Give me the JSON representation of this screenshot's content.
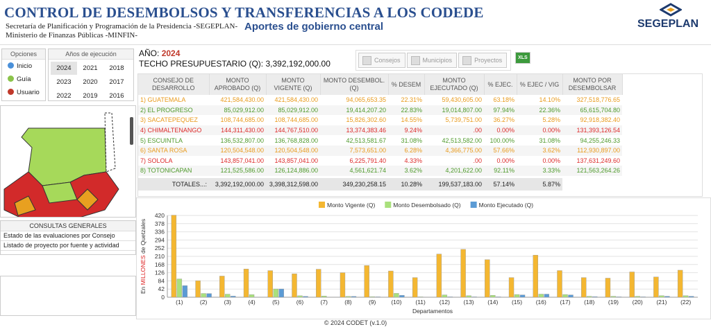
{
  "header": {
    "title": "CONTROL DE DESEMBOLSOS Y TRANSFERENCIAS A LOS CODEDE",
    "subtitle_lines": [
      "Secretaría de Planificación y Programación de la Presidencia -SEGEPLAN-",
      "Ministerio de Finanzas Públicas -MINFIN-"
    ],
    "tagline": "Aportes de gobierno central",
    "logo": "SEGEPLAN"
  },
  "nav": {
    "options_title": "Opciones",
    "years_title": "Años de ejecución",
    "options": [
      "Inicio",
      "Guía",
      "Usuario"
    ],
    "years": [
      "2024",
      "2021",
      "2018",
      "2023",
      "2020",
      "2017",
      "2022",
      "2019",
      "2016"
    ]
  },
  "budget": {
    "year_label": "AÑO:",
    "year": "2024",
    "ceiling_label": "TECHO PRESUPUESTARIO (Q):",
    "ceiling": "3,392,192,000.00"
  },
  "toolbar": {
    "buttons": [
      "Consejos",
      "Municipios",
      "Proyectos"
    ],
    "export": "XLS"
  },
  "consultas": {
    "title": "CONSULTAS GENERALES",
    "items": [
      "Estado de las evaluaciones por Consejo",
      "Listado de proyecto por fuente y actividad"
    ]
  },
  "table": {
    "columns": [
      "CONSEJO DE DESARROLLO",
      "MONTO APROBADO (Q)",
      "MONTO VIGENTE (Q)",
      "MONTO DESEMBOL. (Q)",
      "% DESEM",
      "MONTO EJECUTADO (Q)",
      "% EJEC.",
      "% EJEC / VIG",
      "MONTO POR DESEMBOLSAR"
    ],
    "rows": [
      {
        "color": "#e89a1c",
        "cells": [
          "1) GUATEMALA",
          "421,584,430.00",
          "421,584,430.00",
          "94,065,653.35",
          "22.31%",
          "59,430,605.00",
          "63.18%",
          "14.10%",
          "327,518,776.65"
        ]
      },
      {
        "color": "#4f9a2c",
        "cells": [
          "2) EL PROGRESO",
          "85,029,912.00",
          "85,029,912.00",
          "19,414,207.20",
          "22.83%",
          "19,014,807.00",
          "97.94%",
          "22.36%",
          "65,615,704.80"
        ]
      },
      {
        "color": "#e89a1c",
        "cells": [
          "3) SACATEPEQUEZ",
          "108,744,685.00",
          "108,744,685.00",
          "15,826,302.60",
          "14.55%",
          "5,739,751.00",
          "36.27%",
          "5.28%",
          "92,918,382.40"
        ]
      },
      {
        "color": "#dd2a2a",
        "cells": [
          "4) CHIMALTENANGO",
          "144,311,430.00",
          "144,767,510.00",
          "13,374,383.46",
          "9.24%",
          ".00",
          "0.00%",
          "0.00%",
          "131,393,126.54"
        ]
      },
      {
        "color": "#4f9a2c",
        "cells": [
          "5) ESCUINTLA",
          "136,532,807.00",
          "136,768,828.00",
          "42,513,581.67",
          "31.08%",
          "42,513,582.00",
          "100.00%",
          "31.08%",
          "94,255,246.33"
        ]
      },
      {
        "color": "#e89a1c",
        "cells": [
          "6) SANTA ROSA",
          "120,504,548.00",
          "120,504,548.00",
          "7,573,651.00",
          "6.28%",
          "4,366,775.00",
          "57.66%",
          "3.62%",
          "112,930,897.00"
        ]
      },
      {
        "color": "#dd2a2a",
        "cells": [
          "7) SOLOLA",
          "143,857,041.00",
          "143,857,041.00",
          "6,225,791.40",
          "4.33%",
          ".00",
          "0.00%",
          "0.00%",
          "137,631,249.60"
        ]
      },
      {
        "color": "#4f9a2c",
        "cells": [
          "8) TOTONICAPAN",
          "121,525,586.00",
          "126,124,886.00",
          "4,561,621.74",
          "3.62%",
          "4,201,622.00",
          "92.11%",
          "3.33%",
          "121,563,264.26"
        ]
      }
    ],
    "totals": [
      "TOTALES...:",
      "3,392,192,000.00",
      "3,398,312,598.00",
      "349,230,258.15",
      "10.28%",
      "199,537,183.00",
      "57.14%",
      "5.87%"
    ]
  },
  "chart_data": {
    "type": "bar",
    "y_label_parts": [
      "En ",
      "MILLONES",
      " de Quetzales"
    ],
    "x_label": "Departamentos",
    "categories": [
      "(1)",
      "(2)",
      "(3)",
      "(4)",
      "(5)",
      "(6)",
      "(7)",
      "(8)",
      "(9)",
      "(10)",
      "(11)",
      "(12)",
      "(13)",
      "(14)",
      "(15)",
      "(16)",
      "(17)",
      "(18)",
      "(19)",
      "(20)",
      "(21)",
      "(22)"
    ],
    "series": [
      {
        "name": "Monto Vigente (Q)",
        "color": "#f4b731",
        "values": [
          421.6,
          85.0,
          108.7,
          144.8,
          136.8,
          120.5,
          143.9,
          126.1,
          163,
          135,
          101,
          222,
          246,
          193,
          101,
          216,
          137,
          101,
          98,
          130,
          104,
          139
        ]
      },
      {
        "name": "Monto Desembolsado (Q)",
        "color": "#a9e07c",
        "values": [
          94.1,
          19.4,
          15.8,
          13.4,
          42.5,
          7.6,
          6.2,
          4.6,
          3,
          20,
          2,
          12,
          8,
          10,
          14,
          16,
          14,
          5,
          5,
          5,
          8,
          8
        ]
      },
      {
        "name": "Monto Ejecutado (Q)",
        "color": "#5b9bd5",
        "values": [
          59.4,
          19.0,
          5.7,
          0,
          42.5,
          4.4,
          0,
          4.2,
          2,
          10,
          0,
          2,
          2,
          2,
          12,
          16,
          12,
          3,
          2,
          2,
          5,
          5
        ]
      }
    ],
    "ylim": [
      0,
      420
    ],
    "yticks": [
      0,
      42,
      84,
      126,
      168,
      210,
      252,
      294,
      336,
      378,
      420
    ],
    "grid": true
  },
  "footer": "© 2024 CODET (v.1.0)"
}
